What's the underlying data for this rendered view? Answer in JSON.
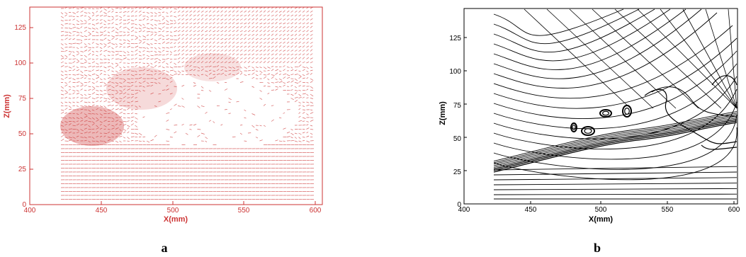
{
  "panels": [
    {
      "id": "a",
      "label": "a",
      "xlabel": "X(mm)",
      "ylabel": "Z(mm)",
      "xlim": [
        400,
        605
      ],
      "ylim": [
        0,
        140
      ],
      "xticks": [
        "400",
        "450",
        "500",
        "550",
        "600"
      ],
      "yticks": [
        "0",
        "25",
        "50",
        "75",
        "100",
        "125"
      ],
      "color": "#cc3333",
      "plot": "velocity vector field"
    },
    {
      "id": "b",
      "label": "b",
      "xlabel": "X(mm)",
      "ylabel": "Z(mm)",
      "xlim": [
        400,
        605
      ],
      "ylim": [
        0,
        145
      ],
      "xticks": [
        "400",
        "450",
        "500",
        "550",
        "600"
      ],
      "yticks": [
        "0",
        "25",
        "50",
        "75",
        "100",
        "125"
      ],
      "color": "#000000",
      "plot": "streamlines"
    }
  ]
}
